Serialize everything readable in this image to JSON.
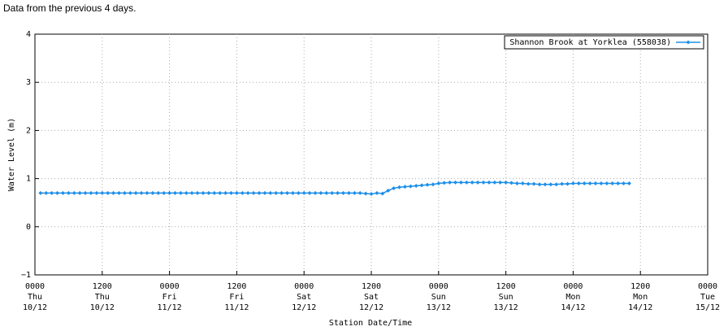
{
  "caption": "Data from the previous 4 days.",
  "chart_data": {
    "type": "line",
    "xlabel": "Station Date/Time",
    "ylabel": "Water Level (m)",
    "xlim": [
      0,
      120
    ],
    "ylim": [
      -1,
      4
    ],
    "yticks": [
      {
        "value": -1,
        "label": "−1"
      },
      0,
      1,
      2,
      3,
      4
    ],
    "xticks": [
      {
        "value": 0,
        "label": [
          "0000",
          "Thu",
          "10/12"
        ]
      },
      {
        "value": 12,
        "label": [
          "1200",
          "Thu",
          "10/12"
        ]
      },
      {
        "value": 24,
        "label": [
          "0000",
          "Fri",
          "11/12"
        ]
      },
      {
        "value": 36,
        "label": [
          "1200",
          "Fri",
          "11/12"
        ]
      },
      {
        "value": 48,
        "label": [
          "0000",
          "Sat",
          "12/12"
        ]
      },
      {
        "value": 60,
        "label": [
          "1200",
          "Sat",
          "12/12"
        ]
      },
      {
        "value": 72,
        "label": [
          "0000",
          "Sun",
          "13/12"
        ]
      },
      {
        "value": 84,
        "label": [
          "1200",
          "Sun",
          "13/12"
        ]
      },
      {
        "value": 96,
        "label": [
          "0000",
          "Mon",
          "14/12"
        ]
      },
      {
        "value": 108,
        "label": [
          "1200",
          "Mon",
          "14/12"
        ]
      },
      {
        "value": 120,
        "label": [
          "0000",
          "Tue",
          "15/12"
        ]
      }
    ],
    "grid": true,
    "legend": "top-right",
    "x": [
      1,
      2,
      3,
      4,
      5,
      6,
      7,
      8,
      9,
      10,
      11,
      12,
      13,
      14,
      15,
      16,
      17,
      18,
      19,
      20,
      21,
      22,
      23,
      24,
      25,
      26,
      27,
      28,
      29,
      30,
      31,
      32,
      33,
      34,
      35,
      36,
      37,
      38,
      39,
      40,
      41,
      42,
      43,
      44,
      45,
      46,
      47,
      48,
      49,
      50,
      51,
      52,
      53,
      54,
      55,
      56,
      57,
      58,
      59,
      60,
      61,
      62,
      63,
      64,
      65,
      66,
      67,
      68,
      69,
      70,
      71,
      72,
      73,
      74,
      75,
      76,
      77,
      78,
      79,
      80,
      81,
      82,
      83,
      84,
      85,
      86,
      87,
      88,
      89,
      90,
      91,
      92,
      93,
      94,
      95,
      96,
      97,
      98,
      99,
      100,
      101,
      102,
      103,
      104,
      105,
      106
    ],
    "series": [
      {
        "name": "Shannon Brook at Yorklea (558038)",
        "color": "#1e8fe8",
        "values": [
          0.7,
          0.7,
          0.7,
          0.7,
          0.7,
          0.7,
          0.7,
          0.7,
          0.7,
          0.7,
          0.7,
          0.7,
          0.7,
          0.7,
          0.7,
          0.7,
          0.7,
          0.7,
          0.7,
          0.7,
          0.7,
          0.7,
          0.7,
          0.7,
          0.7,
          0.7,
          0.7,
          0.7,
          0.7,
          0.7,
          0.7,
          0.7,
          0.7,
          0.7,
          0.7,
          0.7,
          0.7,
          0.7,
          0.7,
          0.7,
          0.7,
          0.7,
          0.7,
          0.7,
          0.7,
          0.7,
          0.7,
          0.7,
          0.7,
          0.7,
          0.7,
          0.7,
          0.7,
          0.7,
          0.7,
          0.7,
          0.7,
          0.7,
          0.69,
          0.68,
          0.7,
          0.69,
          0.75,
          0.8,
          0.82,
          0.83,
          0.84,
          0.85,
          0.86,
          0.87,
          0.88,
          0.9,
          0.91,
          0.92,
          0.92,
          0.92,
          0.92,
          0.92,
          0.92,
          0.92,
          0.92,
          0.92,
          0.92,
          0.92,
          0.91,
          0.9,
          0.9,
          0.89,
          0.89,
          0.88,
          0.88,
          0.88,
          0.88,
          0.89,
          0.89,
          0.9,
          0.9,
          0.9,
          0.9,
          0.9,
          0.9,
          0.9,
          0.9,
          0.9,
          0.9,
          0.9
        ]
      }
    ]
  }
}
